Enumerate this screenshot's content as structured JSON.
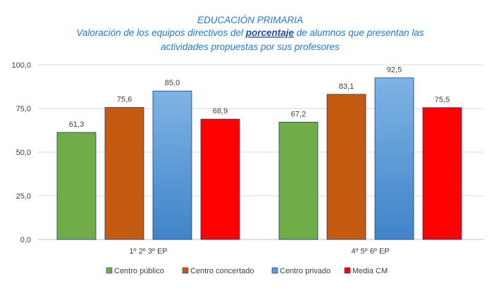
{
  "chart_data": {
    "type": "bar",
    "title_lines": [
      "EDUCACIÓN PRIMARIA",
      [
        "Valoración de los equipos directivos del ",
        "porcentaje",
        " de  alumnos que presentan las"
      ],
      "actividades propuestas por sus profesores"
    ],
    "categories": [
      "1º 2º 3º  EP",
      "4º 5º 6º EP"
    ],
    "series": [
      {
        "name": "Centro público",
        "values": [
          61.3,
          67.2
        ],
        "labels": [
          "61,3",
          "67,2"
        ],
        "color": "#70ad47"
      },
      {
        "name": "Centro concertado",
        "values": [
          75.6,
          83.1
        ],
        "labels": [
          "75,6",
          "83,1"
        ],
        "color": "#c55a11"
      },
      {
        "name": "Centro privado",
        "values": [
          85.0,
          92.5
        ],
        "labels": [
          "85,0",
          "92,5"
        ],
        "color": "#5b9bd5"
      },
      {
        "name": "Media CM",
        "values": [
          68.9,
          75.5
        ],
        "labels": [
          "68,9",
          "75,5"
        ],
        "color": "#ff0000"
      }
    ],
    "yticks": [
      0,
      25,
      50,
      75,
      100
    ],
    "ytick_labels": [
      "0,0",
      "25,0",
      "50,0",
      "75,0",
      "100,0"
    ],
    "ylim": [
      0,
      100
    ],
    "grid": true,
    "legend": "bottom",
    "xlabel": "",
    "ylabel": ""
  }
}
